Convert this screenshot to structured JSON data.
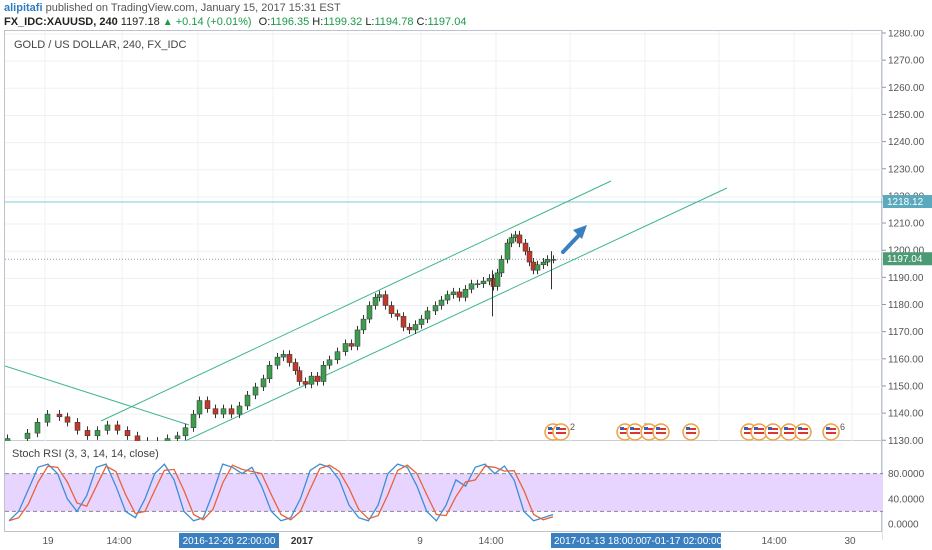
{
  "header": {
    "author": "alipitafi",
    "published_text": "published on TradingView.com, January 15, 2017 15:31 EST",
    "symbol": "FX_IDC:XAUUSD, 240",
    "last": "1197.18",
    "change": "+0.14 (+0.01%)",
    "o_label": "O:",
    "o_value": "1196.35",
    "h_label": "H:",
    "h_value": "1199.32",
    "l_label": "L:",
    "l_value": "1194.78",
    "c_label": "C:",
    "c_value": "1197.04"
  },
  "chart": {
    "label": "GOLD / US DOLLAR, 240, FX_IDC",
    "price_ticks": [
      "1280.00",
      "1270.00",
      "1260.00",
      "1250.00",
      "1240.00",
      "1230.00",
      "1220.00",
      "1210.00",
      "1200.00",
      "1190.00",
      "1180.00",
      "1170.00",
      "1160.00",
      "1150.00",
      "1140.00",
      "1130.00"
    ],
    "horizontal_line_value": "1218.12",
    "current_price_value": "1197.04",
    "colors": {
      "up": "#3e9b4f",
      "down": "#c0392b",
      "channel": "#3fb58e",
      "hline": "#7ecbd8",
      "arrow": "#3a7fc0",
      "price_tag": "#4c9a74",
      "hline_tag": "#5aa9bd"
    },
    "event_badges": [
      "",
      "2",
      "",
      "7",
      "4",
      "",
      "",
      "2",
      "",
      "",
      "4",
      "",
      "6"
    ]
  },
  "stoch": {
    "label": "Stoch RSI (3, 3, 14, 14, close)",
    "ticks": [
      "80.0000",
      "40.0000",
      "0.0000"
    ],
    "band_color": "#e8d5ff"
  },
  "time_axis": {
    "labels": [
      "19",
      "14:00",
      "2017",
      "9",
      "14:00",
      "14:00",
      "30"
    ],
    "highlight_left": "2016-12-26 22:00:00",
    "highlight_right_a": "2017-01-13 18:00:00",
    "highlight_right_b": "7-01-17 02:00:00",
    "highlight_color": "#3a7fc0"
  }
}
